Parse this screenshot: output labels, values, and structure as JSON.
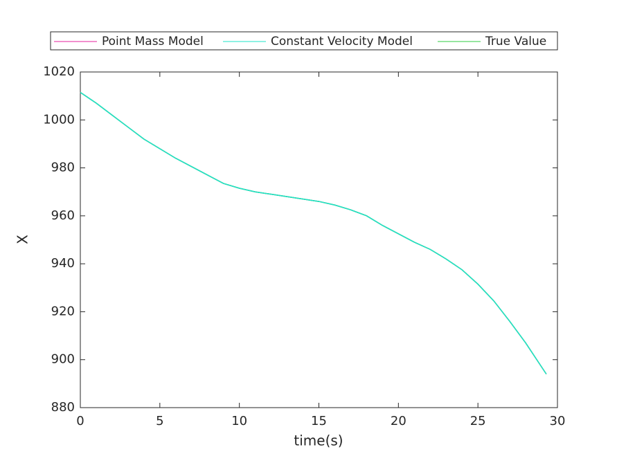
{
  "chart_data": {
    "type": "line",
    "x": [
      0,
      1,
      2,
      3,
      4,
      5,
      6,
      7,
      8,
      9,
      10,
      11,
      12,
      13,
      14,
      15,
      16,
      17,
      18,
      19,
      20,
      21,
      22,
      23,
      24,
      25,
      26,
      27,
      28,
      29,
      29.3
    ],
    "series": [
      {
        "name": "Point Mass Model",
        "color": "#e6219e",
        "values": [
          1011.5,
          1007,
          1002,
          997,
          992,
          988,
          984,
          980.5,
          977,
          973.5,
          971.5,
          970,
          969,
          968,
          967,
          966,
          964.5,
          962.5,
          960,
          956,
          952.5,
          949,
          946,
          942,
          937.5,
          931.5,
          924.5,
          916,
          907,
          897,
          894
        ]
      },
      {
        "name": "Constant Velocity Model",
        "color": "#1de6c8",
        "values": [
          1011.5,
          1007,
          1002,
          997,
          992,
          988,
          984,
          980.5,
          977,
          973.5,
          971.5,
          970,
          969,
          968,
          967,
          966,
          964.5,
          962.5,
          960,
          956,
          952.5,
          949,
          946,
          942,
          937.5,
          931.5,
          924.5,
          916,
          907,
          897,
          894
        ]
      },
      {
        "name": "True Value",
        "color": "#2ecc40",
        "values": [
          1011.5,
          1007,
          1002,
          997,
          992,
          988,
          984,
          980.5,
          977,
          973.5,
          971.5,
          970,
          969,
          968,
          967,
          966,
          964.5,
          962.5,
          960,
          956,
          952.5,
          949,
          946,
          942,
          937.5,
          931.5,
          924.5,
          916,
          907,
          897,
          894
        ]
      }
    ],
    "xlabel": "time(s)",
    "ylabel": "X",
    "xlim": [
      0,
      30
    ],
    "xticks": [
      0,
      5,
      10,
      15,
      20,
      25,
      30
    ],
    "ylim": [
      880,
      1020
    ],
    "yticks": [
      880,
      900,
      920,
      940,
      960,
      980,
      1000,
      1020
    ],
    "legend": "top"
  }
}
